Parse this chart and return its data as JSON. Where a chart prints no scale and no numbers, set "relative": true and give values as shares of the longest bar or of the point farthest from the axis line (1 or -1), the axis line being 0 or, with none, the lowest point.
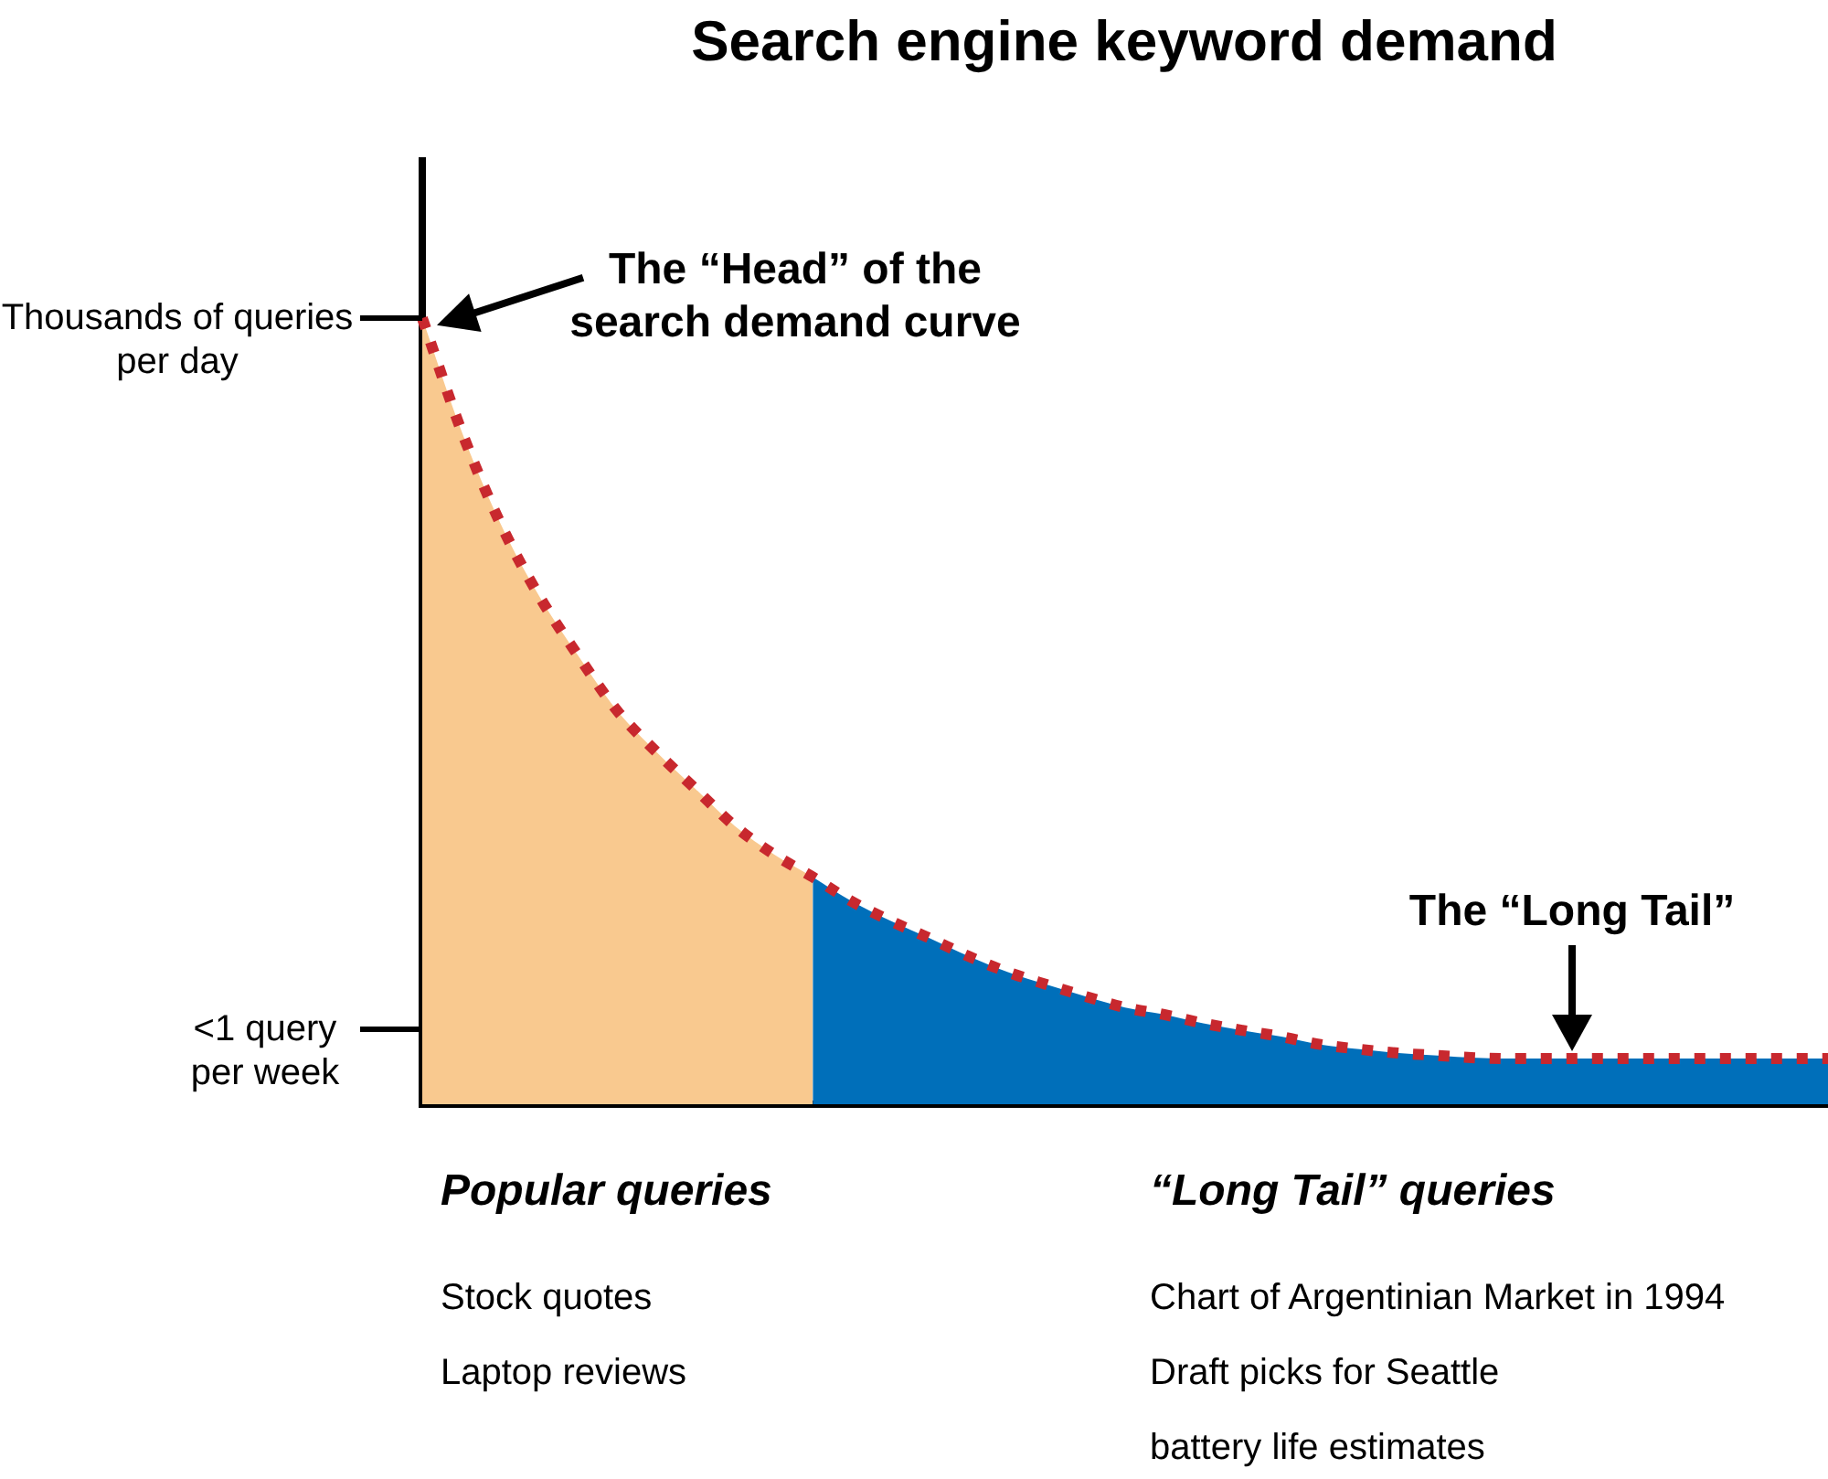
{
  "chart_data": {
    "type": "area",
    "title": "Search engine keyword demand",
    "relative": true,
    "categories": [
      null,
      null,
      null,
      null,
      null,
      null,
      null,
      null,
      null,
      null,
      null,
      null,
      null,
      null,
      null,
      null,
      null,
      null,
      null,
      null,
      null,
      null,
      null,
      null,
      null,
      null,
      null,
      null,
      null,
      null,
      null,
      null,
      null,
      null,
      null,
      null,
      null
    ],
    "series": [
      {
        "type": "area",
        "color": "#f9c98f",
        "values": [
          1,
          0.857,
          0.739,
          0.646,
          0.57,
          0.5,
          0.448,
          0.401,
          0.354,
          0.318,
          0.289,
          null,
          null,
          null,
          null,
          null,
          null,
          null,
          null,
          null,
          null,
          null,
          null,
          null,
          null,
          null,
          null,
          null,
          null,
          null,
          null,
          null,
          null,
          null,
          null,
          null,
          null
        ]
      },
      {
        "type": "area",
        "color": "#006fba",
        "values": [
          null,
          null,
          null,
          null,
          null,
          null,
          null,
          null,
          null,
          null,
          0.289,
          0.258,
          0.233,
          0.211,
          0.188,
          0.168,
          0.152,
          0.137,
          0.123,
          0.114,
          0.103,
          0.094,
          0.086,
          0.076,
          0.07,
          0.065,
          0.062,
          0.059,
          0.058,
          0.058,
          0.058,
          0.058,
          0.058,
          0.058,
          0.058,
          0.058,
          0.058
        ]
      },
      {
        "type": "line",
        "color": "#c8282e",
        "values": [
          1,
          0.857,
          0.739,
          0.646,
          0.57,
          0.5,
          0.448,
          0.401,
          0.354,
          0.318,
          0.289,
          0.258,
          0.233,
          0.211,
          0.188,
          0.168,
          0.152,
          0.137,
          0.123,
          0.114,
          0.103,
          0.094,
          0.086,
          0.076,
          0.07,
          0.065,
          0.062,
          0.059,
          0.058,
          0.058,
          0.058,
          0.058,
          0.058,
          0.058,
          0.058,
          0.058,
          0.058
        ]
      }
    ],
    "line_style": "dotted",
    "marker": "none",
    "tick_labels": false,
    "annotations": [
      "The “Head” of the search demand curve",
      "Thousands of queries per day",
      "The “Long Tail”",
      "<1 query per week",
      "Popular queries",
      "“Long Tail” queries",
      "Stock quotes",
      "Chart of Argentinian Market in 1994",
      "Laptop reviews",
      "Draft picks for Seattle",
      "battery life estimates"
    ]
  }
}
